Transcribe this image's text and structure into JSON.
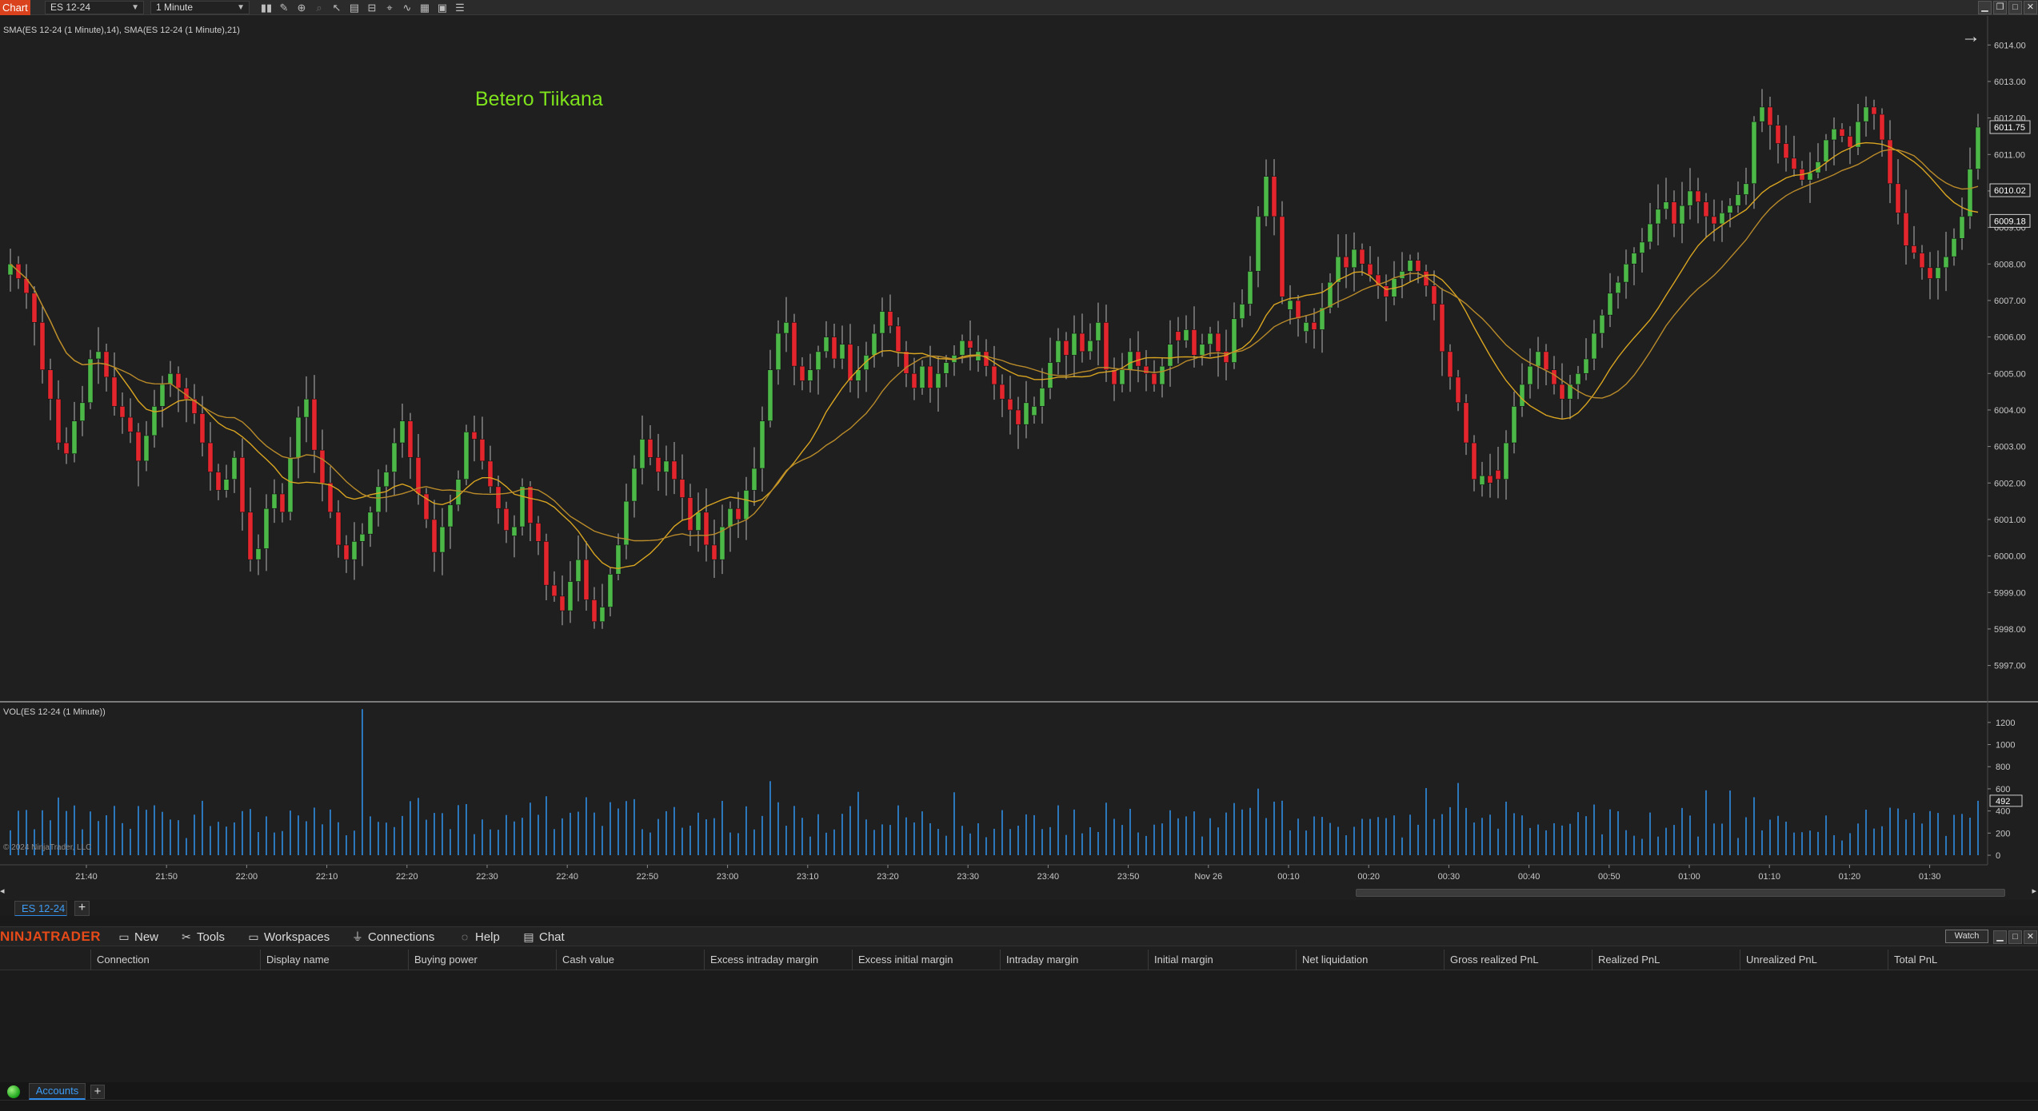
{
  "toolbar": {
    "chart_tab": "Chart",
    "instrument": "ES 12-24",
    "interval": "1 Minute",
    "tools": [
      "bar-type-icon",
      "draw-pencil-icon",
      "zoom-icon",
      "magnify-disabled-icon",
      "pointer-icon",
      "properties-icon",
      "data-box-icon",
      "crosshair-icon",
      "indicators-icon",
      "strategies-icon",
      "templates-icon",
      "list-icon"
    ]
  },
  "price_panel": {
    "indicator_label": "SMA(ES 12-24 (1 Minute),14), SMA(ES 12-24 (1 Minute),21)",
    "annotation": "Betero Tiikana",
    "axis_ticks": [
      "6014.00",
      "6013.00",
      "6012.00",
      "6011.00",
      "6010.00",
      "6009.00",
      "6008.00",
      "6007.00",
      "6006.00",
      "6005.00",
      "6004.00",
      "6003.00",
      "6002.00",
      "6001.00",
      "6000.00",
      "5999.00",
      "5998.00",
      "5997.00"
    ],
    "price_markers": [
      {
        "label": "6011.75",
        "color": "#1f1f1f",
        "text": "#ffffff"
      },
      {
        "label": "6010.02",
        "color": "#1f1f1f",
        "text": "#ffffff"
      },
      {
        "label": "6009.18",
        "color": "#1f1f1f",
        "text": "#ffffff"
      }
    ]
  },
  "volume_panel": {
    "label": "VOL(ES 12-24 (1 Minute))",
    "axis_ticks": [
      "1200",
      "1000",
      "800",
      "600",
      "400",
      "200",
      "0"
    ],
    "last_volume": "492",
    "copyright": "© 2024 NinjaTrader, LLC"
  },
  "time_axis": [
    "21:40",
    "21:50",
    "22:00",
    "22:10",
    "22:20",
    "22:30",
    "22:40",
    "22:50",
    "23:00",
    "23:10",
    "23:20",
    "23:30",
    "23:40",
    "23:50",
    "Nov 26",
    "00:10",
    "00:20",
    "00:30",
    "00:40",
    "00:50",
    "01:00",
    "01:10",
    "01:20",
    "01:30"
  ],
  "chart_tabs": {
    "active": "ES 12-24",
    "add": "+"
  },
  "menubar": {
    "logo": "NINJATRADER",
    "items": [
      {
        "label": "New",
        "icon": "new-window-icon"
      },
      {
        "label": "Tools",
        "icon": "tools-icon"
      },
      {
        "label": "Workspaces",
        "icon": "workspaces-icon"
      },
      {
        "label": "Connections",
        "icon": "connections-plug-icon"
      },
      {
        "label": "Help",
        "icon": "help-icon"
      },
      {
        "label": "Chat",
        "icon": "chat-icon"
      }
    ],
    "watch": "Watch"
  },
  "accounts_grid": {
    "columns": [
      "Connection",
      "Display name",
      "Buying power",
      "Cash value",
      "Excess intraday margin",
      "Excess initial margin",
      "Intraday margin",
      "Initial margin",
      "Net liquidation",
      "Gross realized PnL",
      "Realized PnL",
      "Unrealized PnL",
      "Total PnL"
    ]
  },
  "bottom_tabs": {
    "active": "Accounts",
    "add": "+"
  },
  "colors": {
    "up": "#4cb848",
    "down": "#e3262d",
    "sma14": "#d9a521",
    "sma21": "#b88a2a",
    "volume": "#2f8de4",
    "accent": "#2d8ae8",
    "logo": "#e64a19"
  },
  "chart_data": [
    {
      "type": "candlestick",
      "title": "",
      "ylim": [
        5996.4,
        6014.4
      ],
      "series": [
        {
          "name": "SMA(ES 12-24 (1 Minute),14)"
        },
        {
          "name": "SMA(ES 12-24 (1 Minute),21)"
        }
      ],
      "close": [
        6008,
        6007.6,
        6007.2,
        6006.4,
        6005.1,
        6004.3,
        6003.1,
        6002.8,
        6003.7,
        6004.2,
        6005.4,
        6005.6,
        6004.9,
        6004.1,
        6003.8,
        6003.4,
        6002.6,
        6003.3,
        6004.1,
        6004.7,
        6005.0,
        6004.6,
        6004.3,
        6003.9,
        6003.1,
        6002.3,
        6001.8,
        6002.1,
        6002.7,
        6001.2,
        5999.9,
        6000.2,
        6001.3,
        6001.7,
        6001.2,
        6002.7,
        6003.8,
        6004.3,
        6002.9,
        6002.0,
        6001.2,
        6000.3,
        5999.9,
        6000.4,
        6000.6,
        6001.2,
        6001.9,
        6002.3,
        6003.1,
        6003.7,
        6002.7,
        6001.7,
        6001.0,
        6000.1,
        6000.8,
        6001.4,
        6002.1,
        6003.4,
        6003.2,
        6002.6,
        6001.9,
        6001.3,
        6000.7,
        6000.8,
        6001.9,
        6000.9,
        6000.4,
        5999.2,
        5998.9,
        5998.5,
        5999.3,
        5999.9,
        5998.8,
        5998.2,
        5998.6,
        5999.5,
        6000.3,
        6001.5,
        6002.4,
        6003.2,
        6002.7,
        6002.3,
        6002.6,
        6002.1,
        6001.6,
        6000.7,
        6001.2,
        6000.3,
        5999.9,
        6000.8,
        6001.3,
        6001.0,
        6001.8,
        6002.4,
        6003.7,
        6005.1,
        6006.1,
        6006.4,
        6005.2,
        6004.8,
        6005.1,
        6005.6,
        6006.0,
        6005.4,
        6005.8,
        6004.8,
        6005.1,
        6005.5,
        6006.1,
        6006.7,
        6006.3,
        6005.6,
        6005.0,
        6004.6,
        6005.2,
        6004.6,
        6005.0,
        6005.3,
        6005.5,
        6005.9,
        6005.7,
        6005.6,
        6005.2,
        6004.7,
        6004.3,
        6004.0,
        6003.6,
        6004.2,
        6004.1,
        6004.6,
        6005.3,
        6005.9,
        6005.5,
        6006.1,
        6005.6,
        6005.9,
        6006.4,
        6005.1,
        6004.7,
        6005.1,
        6005.6,
        6005.2,
        6005.0,
        6004.7,
        6005.2,
        6005.8,
        6005.9,
        6006.2,
        6005.5,
        6005.8,
        6006.1,
        6005.6,
        6005.3,
        6006.5,
        6006.9,
        6007.8,
        6009.3,
        6010.4,
        6009.3,
        6007.1,
        6007.0,
        6006.5,
        6006.4,
        6006.2,
        6006.8,
        6007.5,
        6008.2,
        6007.9,
        6008.4,
        6008.0,
        6007.7,
        6007.4,
        6007.1,
        6007.6,
        6007.8,
        6008.1,
        6007.8,
        6007.4,
        6006.9,
        6005.6,
        6004.9,
        6004.2,
        6003.1,
        6002.1,
        6002.2,
        6002.0,
        6002.1,
        6003.1,
        6004.1,
        6004.7,
        6005.2,
        6005.6,
        6005.1,
        6004.7,
        6004.3,
        6004.7,
        6005.0,
        6005.4,
        6006.1,
        6006.6,
        6007.2,
        6007.5,
        6008.0,
        6008.3,
        6008.6,
        6009.1,
        6009.5,
        6009.7,
        6009.1,
        6009.6,
        6010.0,
        6009.7,
        6009.3,
        6009.1,
        6009.4,
        6009.6,
        6009.9,
        6010.2,
        6011.9,
        6012.3,
        6011.8,
        6011.3,
        6010.9,
        6010.6,
        6010.3,
        6010.5,
        6010.8,
        6011.4,
        6011.7,
        6011.5,
        6011.2,
        6011.9,
        6012.3,
        6012.1,
        6011.4,
        6010.2,
        6009.4,
        6008.5,
        6008.3,
        6007.9,
        6007.6,
        6007.9,
        6008.2,
        6008.7,
        6009.3,
        6010.6,
        6011.75
      ],
      "x_ticks": [
        "21:40",
        "21:50",
        "22:00",
        "22:10",
        "22:20",
        "22:30",
        "22:40",
        "22:50",
        "23:00",
        "23:10",
        "23:20",
        "23:30",
        "23:40",
        "23:50",
        "Nov 26",
        "00:10",
        "00:20",
        "00:30",
        "00:40",
        "00:50",
        "01:00",
        "01:10",
        "01:20",
        "01:30"
      ],
      "y_ticks": [
        6014,
        6013,
        6012,
        6011,
        6010,
        6009,
        6008,
        6007,
        6006,
        6005,
        6004,
        6003,
        6002,
        6001,
        6000,
        5999,
        5998,
        5997
      ]
    },
    {
      "type": "bar",
      "title": "",
      "ylim": [
        0,
        1300
      ],
      "last_value": 492,
      "y_ticks": [
        1200,
        1000,
        800,
        600,
        400,
        200,
        0
      ]
    }
  ]
}
